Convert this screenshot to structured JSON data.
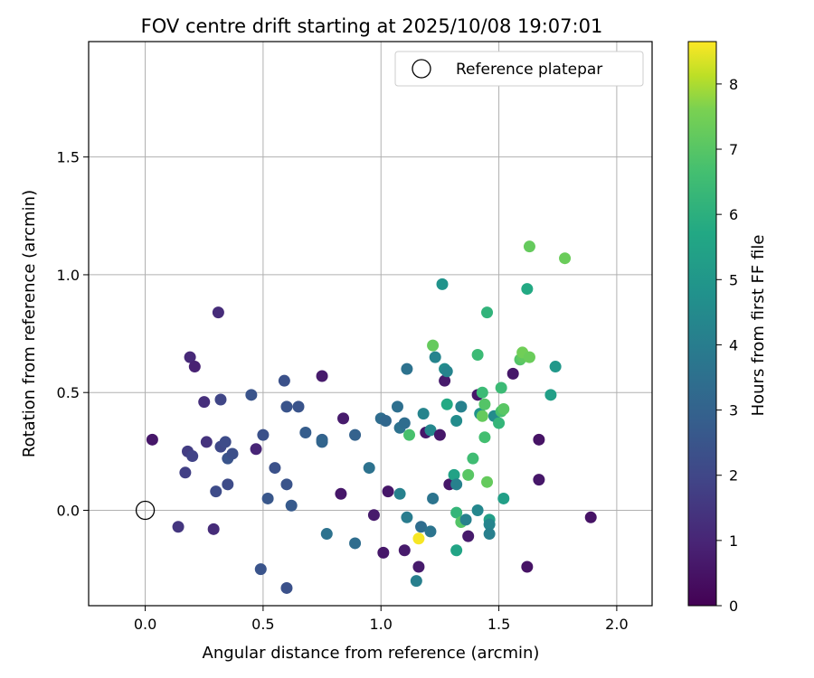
{
  "chart_data": {
    "type": "scatter",
    "title": "FOV centre drift starting at 2025/10/08 19:07:01",
    "xlabel": "Angular distance from reference (arcmin)",
    "ylabel": "Rotation from reference (arcmin)",
    "xlim": [
      -0.24,
      2.15
    ],
    "ylim": [
      -0.405,
      1.99
    ],
    "xticks": [
      0.0,
      0.5,
      1.0,
      1.5,
      2.0
    ],
    "xtick_labels": [
      "0.0",
      "0.5",
      "1.0",
      "1.5",
      "2.0"
    ],
    "yticks": [
      0.0,
      0.5,
      1.0,
      1.5
    ],
    "ytick_labels": [
      "0.0",
      "0.5",
      "1.0",
      "1.5"
    ],
    "grid": true,
    "legend": {
      "location": "top-right",
      "entries": [
        {
          "label": "Reference platepar",
          "marker": "open-circle",
          "color": "#000000"
        }
      ]
    },
    "reference_point": {
      "x": 0.0,
      "y": 0.0
    },
    "colorbar": {
      "label": "Hours from first FF file",
      "colormap": "viridis",
      "range": [
        0,
        8.65
      ],
      "ticks": [
        0,
        1,
        2,
        3,
        4,
        5,
        6,
        7,
        8
      ],
      "tick_labels": [
        "0",
        "1",
        "2",
        "3",
        "4",
        "5",
        "6",
        "7",
        "8"
      ]
    },
    "points": [
      {
        "x": 0.03,
        "y": 0.3,
        "c": 0.6
      },
      {
        "x": 0.14,
        "y": -0.07,
        "c": 1.5
      },
      {
        "x": 0.19,
        "y": 0.65,
        "c": 1.1
      },
      {
        "x": 0.21,
        "y": 0.61,
        "c": 0.9
      },
      {
        "x": 0.17,
        "y": 0.16,
        "c": 1.8
      },
      {
        "x": 0.18,
        "y": 0.25,
        "c": 1.7
      },
      {
        "x": 0.2,
        "y": 0.23,
        "c": 1.9
      },
      {
        "x": 0.25,
        "y": 0.46,
        "c": 1.3
      },
      {
        "x": 0.26,
        "y": 0.29,
        "c": 1.4
      },
      {
        "x": 0.29,
        "y": -0.08,
        "c": 1.2
      },
      {
        "x": 0.31,
        "y": 0.84,
        "c": 1.2
      },
      {
        "x": 0.3,
        "y": 0.08,
        "c": 2.2
      },
      {
        "x": 0.32,
        "y": 0.47,
        "c": 2.0
      },
      {
        "x": 0.32,
        "y": 0.27,
        "c": 2.1
      },
      {
        "x": 0.34,
        "y": 0.29,
        "c": 2.2
      },
      {
        "x": 0.35,
        "y": 0.22,
        "c": 2.5
      },
      {
        "x": 0.35,
        "y": 0.11,
        "c": 2.2
      },
      {
        "x": 0.37,
        "y": 0.24,
        "c": 2.3
      },
      {
        "x": 0.45,
        "y": 0.49,
        "c": 2.5
      },
      {
        "x": 0.47,
        "y": 0.26,
        "c": 1.0
      },
      {
        "x": 0.49,
        "y": -0.25,
        "c": 2.5
      },
      {
        "x": 0.5,
        "y": 0.32,
        "c": 2.4
      },
      {
        "x": 0.52,
        "y": 0.05,
        "c": 2.6
      },
      {
        "x": 0.55,
        "y": 0.18,
        "c": 2.4
      },
      {
        "x": 0.59,
        "y": 0.55,
        "c": 2.4
      },
      {
        "x": 0.6,
        "y": 0.44,
        "c": 2.5
      },
      {
        "x": 0.6,
        "y": 0.11,
        "c": 2.5
      },
      {
        "x": 0.6,
        "y": -0.33,
        "c": 2.4
      },
      {
        "x": 0.62,
        "y": 0.02,
        "c": 2.7
      },
      {
        "x": 0.65,
        "y": 0.44,
        "c": 2.5
      },
      {
        "x": 0.68,
        "y": 0.33,
        "c": 2.8
      },
      {
        "x": 0.75,
        "y": 0.57,
        "c": 0.7
      },
      {
        "x": 0.75,
        "y": 0.3,
        "c": 3.0
      },
      {
        "x": 0.75,
        "y": 0.29,
        "c": 3.1
      },
      {
        "x": 0.77,
        "y": -0.1,
        "c": 3.6
      },
      {
        "x": 0.83,
        "y": 0.07,
        "c": 0.6
      },
      {
        "x": 0.84,
        "y": 0.39,
        "c": 0.7
      },
      {
        "x": 0.89,
        "y": 0.32,
        "c": 3.0
      },
      {
        "x": 0.89,
        "y": -0.14,
        "c": 3.4
      },
      {
        "x": 0.95,
        "y": 0.18,
        "c": 3.6
      },
      {
        "x": 0.97,
        "y": -0.02,
        "c": 0.7
      },
      {
        "x": 1.0,
        "y": 0.39,
        "c": 3.4
      },
      {
        "x": 1.01,
        "y": -0.18,
        "c": 0.6
      },
      {
        "x": 1.02,
        "y": 0.38,
        "c": 3.2
      },
      {
        "x": 1.03,
        "y": 0.08,
        "c": 0.6
      },
      {
        "x": 1.07,
        "y": 0.44,
        "c": 3.5
      },
      {
        "x": 1.08,
        "y": 0.35,
        "c": 3.6
      },
      {
        "x": 1.08,
        "y": 0.07,
        "c": 4.2
      },
      {
        "x": 1.1,
        "y": 0.37,
        "c": 3.4
      },
      {
        "x": 1.1,
        "y": -0.17,
        "c": 0.7
      },
      {
        "x": 1.11,
        "y": -0.03,
        "c": 4.0
      },
      {
        "x": 1.11,
        "y": 0.6,
        "c": 3.6
      },
      {
        "x": 1.12,
        "y": 0.32,
        "c": 6.8
      },
      {
        "x": 1.15,
        "y": -0.3,
        "c": 4.1
      },
      {
        "x": 1.16,
        "y": -0.12,
        "c": 8.6
      },
      {
        "x": 1.16,
        "y": -0.24,
        "c": 0.7
      },
      {
        "x": 1.17,
        "y": -0.07,
        "c": 3.4
      },
      {
        "x": 1.18,
        "y": 0.41,
        "c": 4.3
      },
      {
        "x": 1.19,
        "y": 0.33,
        "c": 0.6
      },
      {
        "x": 1.21,
        "y": 0.34,
        "c": 4.4
      },
      {
        "x": 1.21,
        "y": -0.09,
        "c": 3.7
      },
      {
        "x": 1.22,
        "y": 0.7,
        "c": 7.3
      },
      {
        "x": 1.22,
        "y": 0.05,
        "c": 3.7
      },
      {
        "x": 1.23,
        "y": 0.65,
        "c": 4.3
      },
      {
        "x": 1.25,
        "y": 0.32,
        "c": 0.6
      },
      {
        "x": 1.26,
        "y": 0.96,
        "c": 4.9
      },
      {
        "x": 1.27,
        "y": 0.6,
        "c": 4.6
      },
      {
        "x": 1.27,
        "y": 0.55,
        "c": 0.7
      },
      {
        "x": 1.28,
        "y": 0.59,
        "c": 4.3
      },
      {
        "x": 1.28,
        "y": 0.45,
        "c": 5.8
      },
      {
        "x": 1.29,
        "y": 0.11,
        "c": 0.6
      },
      {
        "x": 1.31,
        "y": 0.15,
        "c": 5.5
      },
      {
        "x": 1.32,
        "y": 0.38,
        "c": 4.6
      },
      {
        "x": 1.32,
        "y": 0.11,
        "c": 4.2
      },
      {
        "x": 1.32,
        "y": -0.01,
        "c": 6.3
      },
      {
        "x": 1.32,
        "y": -0.17,
        "c": 5.6
      },
      {
        "x": 1.34,
        "y": 0.44,
        "c": 4.2
      },
      {
        "x": 1.34,
        "y": -0.05,
        "c": 7.0
      },
      {
        "x": 1.36,
        "y": -0.04,
        "c": 4.2
      },
      {
        "x": 1.37,
        "y": -0.11,
        "c": 0.7
      },
      {
        "x": 1.37,
        "y": 0.15,
        "c": 7.1
      },
      {
        "x": 1.39,
        "y": 0.22,
        "c": 6.6
      },
      {
        "x": 1.41,
        "y": 0.49,
        "c": 0.6
      },
      {
        "x": 1.41,
        "y": 0.66,
        "c": 6.5
      },
      {
        "x": 1.41,
        "y": 0.0,
        "c": 4.4
      },
      {
        "x": 1.42,
        "y": 0.41,
        "c": 4.9
      },
      {
        "x": 1.43,
        "y": 0.4,
        "c": 7.3
      },
      {
        "x": 1.43,
        "y": 0.5,
        "c": 6.5
      },
      {
        "x": 1.44,
        "y": 0.31,
        "c": 6.7
      },
      {
        "x": 1.44,
        "y": 0.45,
        "c": 7.0
      },
      {
        "x": 1.45,
        "y": 0.84,
        "c": 6.2
      },
      {
        "x": 1.45,
        "y": 0.12,
        "c": 7.3
      },
      {
        "x": 1.46,
        "y": -0.04,
        "c": 5.4
      },
      {
        "x": 1.46,
        "y": -0.06,
        "c": 4.3
      },
      {
        "x": 1.46,
        "y": -0.1,
        "c": 4.1
      },
      {
        "x": 1.48,
        "y": 0.4,
        "c": 4.6
      },
      {
        "x": 1.5,
        "y": 0.37,
        "c": 6.3
      },
      {
        "x": 1.51,
        "y": 0.52,
        "c": 6.5
      },
      {
        "x": 1.51,
        "y": 0.42,
        "c": 6.8
      },
      {
        "x": 1.52,
        "y": 0.43,
        "c": 7.1
      },
      {
        "x": 1.52,
        "y": 0.05,
        "c": 5.4
      },
      {
        "x": 1.56,
        "y": 0.58,
        "c": 0.6
      },
      {
        "x": 1.59,
        "y": 0.64,
        "c": 7.0
      },
      {
        "x": 1.6,
        "y": 0.65,
        "c": 7.2
      },
      {
        "x": 1.6,
        "y": 0.67,
        "c": 7.5
      },
      {
        "x": 1.62,
        "y": 0.94,
        "c": 5.8
      },
      {
        "x": 1.62,
        "y": -0.24,
        "c": 0.5
      },
      {
        "x": 1.63,
        "y": 1.12,
        "c": 7.3
      },
      {
        "x": 1.63,
        "y": 0.65,
        "c": 7.4
      },
      {
        "x": 1.67,
        "y": 0.3,
        "c": 0.5
      },
      {
        "x": 1.67,
        "y": 0.13,
        "c": 0.6
      },
      {
        "x": 1.72,
        "y": 0.49,
        "c": 5.4
      },
      {
        "x": 1.74,
        "y": 0.61,
        "c": 5.1
      },
      {
        "x": 1.78,
        "y": 1.07,
        "c": 7.4
      },
      {
        "x": 1.89,
        "y": -0.03,
        "c": 0.5
      }
    ]
  }
}
